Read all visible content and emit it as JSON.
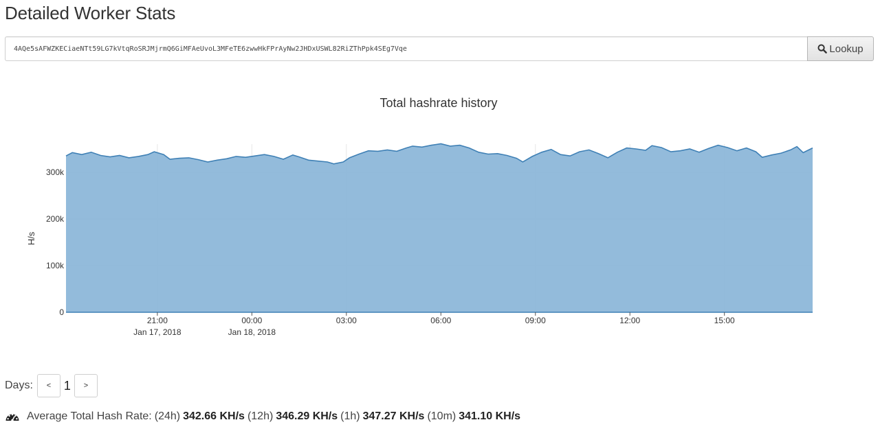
{
  "page": {
    "title": "Detailed Worker Stats"
  },
  "lookup": {
    "address": "4AQe5sAFWZKECiaeNTt59LG7kVtqRoSRJMjrmQ6GiMFAeUvoL3MFeTE6zwwHkFPrAyNw2JHDxUSWL82RiZThPpk4SEg7Vqe",
    "button_label": "Lookup",
    "button_icon": "search-icon"
  },
  "chart_data": {
    "type": "area",
    "title": "Total hashrate history",
    "xlabel": "",
    "ylabel": "H/s",
    "x_range_hours": [
      -5.9,
      17.8
    ],
    "ylim": [
      0,
      375000
    ],
    "yticks": [
      {
        "value": 0,
        "label": "0"
      },
      {
        "value": 100000,
        "label": "100k"
      },
      {
        "value": 200000,
        "label": "200k"
      },
      {
        "value": 300000,
        "label": "300k"
      }
    ],
    "xticks": [
      {
        "hour": -3,
        "label": "21:00",
        "sublabel": "Jan 17, 2018"
      },
      {
        "hour": 0,
        "label": "00:00",
        "sublabel": "Jan 18, 2018"
      },
      {
        "hour": 3,
        "label": "03:00",
        "sublabel": ""
      },
      {
        "hour": 6,
        "label": "06:00",
        "sublabel": ""
      },
      {
        "hour": 9,
        "label": "09:00",
        "sublabel": ""
      },
      {
        "hour": 12,
        "label": "12:00",
        "sublabel": ""
      },
      {
        "hour": 15,
        "label": "15:00",
        "sublabel": ""
      }
    ],
    "grid": true,
    "fill_color": "#8db7d9",
    "line_color": "#3f80b5",
    "points": [
      [
        -5.9,
        335000
      ],
      [
        -5.7,
        342000
      ],
      [
        -5.4,
        338000
      ],
      [
        -5.1,
        343000
      ],
      [
        -4.8,
        336000
      ],
      [
        -4.5,
        333000
      ],
      [
        -4.2,
        336000
      ],
      [
        -3.9,
        331000
      ],
      [
        -3.6,
        334000
      ],
      [
        -3.3,
        338000
      ],
      [
        -3.1,
        344000
      ],
      [
        -2.8,
        338000
      ],
      [
        -2.6,
        328000
      ],
      [
        -2.3,
        330000
      ],
      [
        -2.0,
        331000
      ],
      [
        -1.7,
        327000
      ],
      [
        -1.4,
        322000
      ],
      [
        -1.1,
        326000
      ],
      [
        -0.8,
        329000
      ],
      [
        -0.5,
        334000
      ],
      [
        -0.2,
        332000
      ],
      [
        0.1,
        335000
      ],
      [
        0.4,
        338000
      ],
      [
        0.7,
        334000
      ],
      [
        1.0,
        328000
      ],
      [
        1.3,
        337000
      ],
      [
        1.5,
        333000
      ],
      [
        1.8,
        326000
      ],
      [
        2.1,
        324000
      ],
      [
        2.4,
        322000
      ],
      [
        2.6,
        318000
      ],
      [
        2.9,
        322000
      ],
      [
        3.1,
        331000
      ],
      [
        3.4,
        339000
      ],
      [
        3.7,
        346000
      ],
      [
        4.0,
        345000
      ],
      [
        4.3,
        348000
      ],
      [
        4.6,
        345000
      ],
      [
        4.9,
        352000
      ],
      [
        5.1,
        356000
      ],
      [
        5.4,
        354000
      ],
      [
        5.7,
        358000
      ],
      [
        6.0,
        361000
      ],
      [
        6.3,
        356000
      ],
      [
        6.6,
        358000
      ],
      [
        6.9,
        352000
      ],
      [
        7.2,
        343000
      ],
      [
        7.5,
        339000
      ],
      [
        7.8,
        340000
      ],
      [
        8.1,
        336000
      ],
      [
        8.4,
        330000
      ],
      [
        8.6,
        322000
      ],
      [
        8.9,
        334000
      ],
      [
        9.2,
        343000
      ],
      [
        9.5,
        349000
      ],
      [
        9.8,
        338000
      ],
      [
        10.1,
        335000
      ],
      [
        10.4,
        344000
      ],
      [
        10.7,
        348000
      ],
      [
        11.0,
        340000
      ],
      [
        11.3,
        331000
      ],
      [
        11.6,
        343000
      ],
      [
        11.9,
        352000
      ],
      [
        12.2,
        350000
      ],
      [
        12.5,
        347000
      ],
      [
        12.7,
        357000
      ],
      [
        13.0,
        353000
      ],
      [
        13.3,
        344000
      ],
      [
        13.6,
        346000
      ],
      [
        13.9,
        350000
      ],
      [
        14.2,
        343000
      ],
      [
        14.5,
        351000
      ],
      [
        14.8,
        358000
      ],
      [
        15.1,
        353000
      ],
      [
        15.4,
        346000
      ],
      [
        15.7,
        352000
      ],
      [
        16.0,
        344000
      ],
      [
        16.2,
        332000
      ],
      [
        16.5,
        337000
      ],
      [
        16.8,
        341000
      ],
      [
        17.1,
        348000
      ],
      [
        17.3,
        355000
      ],
      [
        17.5,
        342000
      ],
      [
        17.8,
        352000
      ]
    ]
  },
  "pager": {
    "label": "Days:",
    "prev_label": "<",
    "current": "1",
    "next_label": ">"
  },
  "hashrate_summary": {
    "icon": "dashboard-icon",
    "label": "Average Total Hash Rate:",
    "periods": [
      {
        "period": "(24h)",
        "value": "342.66 KH/s"
      },
      {
        "period": "(12h)",
        "value": "346.29 KH/s"
      },
      {
        "period": "(1h)",
        "value": "347.27 KH/s"
      },
      {
        "period": "(10m)",
        "value": "341.10 KH/s"
      }
    ]
  }
}
